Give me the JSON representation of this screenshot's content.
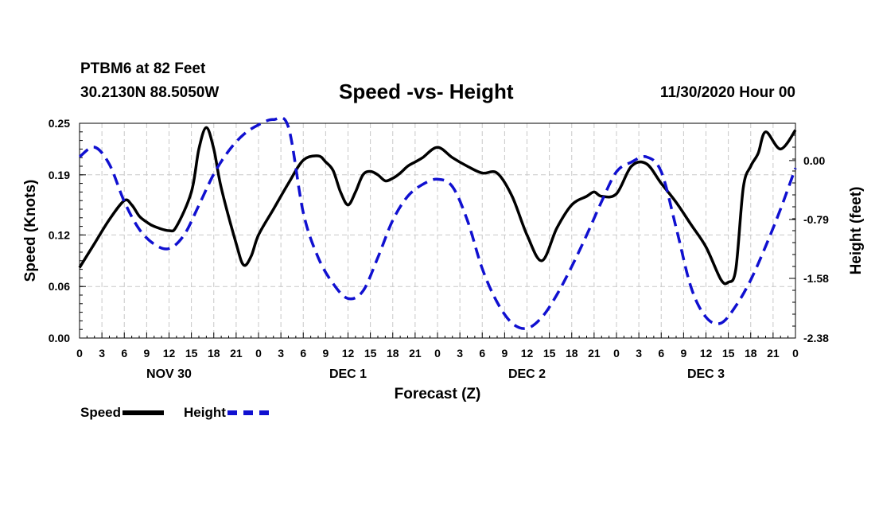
{
  "header": {
    "station": "PTBM6 at 82 Feet",
    "coords": "30.2130N 88.5050W",
    "title": "Speed -vs- Height",
    "datetime": "11/30/2020 Hour 00"
  },
  "legend": {
    "speed": "Speed",
    "height": "Height"
  },
  "colors": {
    "speed": "#000000",
    "height": "#1010d0",
    "grid": "#c8c8c8"
  },
  "chart_data": {
    "type": "line",
    "xlabel": "Forecast (Z)",
    "ylabel_left": "Speed (Knots)",
    "ylabel_right": "Height (feet)",
    "x_range": [
      0,
      96
    ],
    "hour_tick_labels": [
      "0",
      "3",
      "6",
      "9",
      "12",
      "15",
      "18",
      "21",
      "0",
      "3",
      "6",
      "9",
      "12",
      "15",
      "18",
      "21",
      "0",
      "3",
      "6",
      "9",
      "12",
      "15",
      "18",
      "21",
      "0",
      "3",
      "6",
      "9",
      "12",
      "15",
      "18",
      "21",
      "0"
    ],
    "date_labels": [
      {
        "hour": 12,
        "label": "NOV 30"
      },
      {
        "hour": 36,
        "label": "DEC 1"
      },
      {
        "hour": 60,
        "label": "DEC 2"
      },
      {
        "hour": 84,
        "label": "DEC 3"
      }
    ],
    "left_axis": {
      "ylim": [
        0,
        0.25
      ],
      "ticks": [
        0.0,
        0.06,
        0.12,
        0.19,
        0.25
      ],
      "tick_labels": [
        "0.00",
        "0.06",
        "0.12",
        "0.19",
        "0.25"
      ]
    },
    "right_axis": {
      "ylim": [
        -2.38,
        0.5
      ],
      "ticks": [
        0.0,
        -0.79,
        -1.58,
        -2.38
      ],
      "tick_labels": [
        "0.00",
        "-0.79",
        "-1.58",
        "-2.38"
      ]
    },
    "series": [
      {
        "name": "Speed",
        "axis": "left",
        "x": [
          0,
          2,
          4,
          6,
          7,
          8,
          9,
          10,
          12,
          13,
          15,
          16,
          17,
          18,
          19,
          21,
          22,
          23,
          24,
          26,
          28,
          30,
          32,
          33,
          34,
          35,
          36,
          37,
          38,
          39,
          40,
          41,
          42,
          43,
          44,
          45,
          46,
          48,
          50,
          52,
          54,
          56,
          58,
          60,
          62,
          64,
          66,
          68,
          69,
          70,
          72,
          74,
          76,
          78,
          80,
          82,
          84,
          86,
          87,
          88,
          89,
          90,
          91,
          92,
          94,
          96
        ],
        "y": [
          0.082,
          0.11,
          0.138,
          0.16,
          0.155,
          0.142,
          0.135,
          0.13,
          0.125,
          0.13,
          0.17,
          0.22,
          0.245,
          0.22,
          0.175,
          0.11,
          0.085,
          0.095,
          0.12,
          0.15,
          0.18,
          0.207,
          0.212,
          0.205,
          0.195,
          0.17,
          0.155,
          0.17,
          0.19,
          0.194,
          0.19,
          0.183,
          0.186,
          0.192,
          0.2,
          0.205,
          0.21,
          0.222,
          0.21,
          0.2,
          0.192,
          0.192,
          0.165,
          0.12,
          0.09,
          0.128,
          0.155,
          0.165,
          0.17,
          0.165,
          0.168,
          0.2,
          0.203,
          0.18,
          0.158,
          0.132,
          0.106,
          0.068,
          0.065,
          0.08,
          0.175,
          0.2,
          0.215,
          0.24,
          0.22,
          0.242
        ]
      },
      {
        "name": "Height",
        "axis": "right",
        "x": [
          0,
          2,
          4,
          6,
          8,
          10,
          12,
          14,
          16,
          18,
          20,
          22,
          24,
          26,
          28,
          30,
          32,
          34,
          36,
          38,
          40,
          42,
          44,
          46,
          48,
          50,
          52,
          54,
          56,
          58,
          60,
          62,
          64,
          66,
          68,
          70,
          72,
          74,
          76,
          78,
          80,
          82,
          84,
          86,
          88,
          90,
          92,
          94,
          96
        ],
        "y": [
          0.05,
          0.18,
          -0.05,
          -0.55,
          -0.92,
          -1.12,
          -1.18,
          -1.0,
          -0.6,
          -0.18,
          0.13,
          0.35,
          0.48,
          0.55,
          0.45,
          -0.7,
          -1.3,
          -1.65,
          -1.85,
          -1.75,
          -1.3,
          -0.8,
          -0.48,
          -0.32,
          -0.25,
          -0.35,
          -0.8,
          -1.45,
          -1.9,
          -2.18,
          -2.25,
          -2.1,
          -1.8,
          -1.42,
          -1.0,
          -0.55,
          -0.15,
          -0.02,
          0.05,
          -0.15,
          -0.9,
          -1.7,
          -2.1,
          -2.18,
          -1.95,
          -1.6,
          -1.15,
          -0.65,
          -0.1
        ]
      }
    ]
  }
}
